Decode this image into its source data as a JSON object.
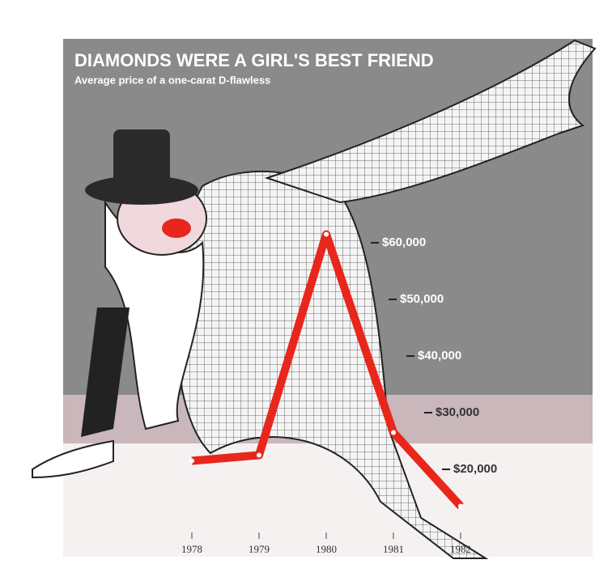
{
  "chart_data": {
    "type": "line",
    "title": "DIAMONDS WERE A GIRL'S BEST FRIEND",
    "subtitle": "Average price of a one-carat D-flawless",
    "categories": [
      "1978",
      "1979",
      "1980",
      "1981",
      "1982"
    ],
    "series": [
      {
        "color": "#e8261c",
        "values": [
          21500,
          22500,
          61500,
          26500,
          13500
        ]
      }
    ],
    "ylim": [
      10000,
      70000
    ],
    "yticks": [
      {
        "value": 20000,
        "label": "$20,000"
      },
      {
        "value": 30000,
        "label": "$30,000"
      },
      {
        "value": 40000,
        "label": "$40,000"
      },
      {
        "value": 50000,
        "label": "$50,000"
      },
      {
        "value": 60000,
        "label": "$60,000"
      }
    ]
  }
}
